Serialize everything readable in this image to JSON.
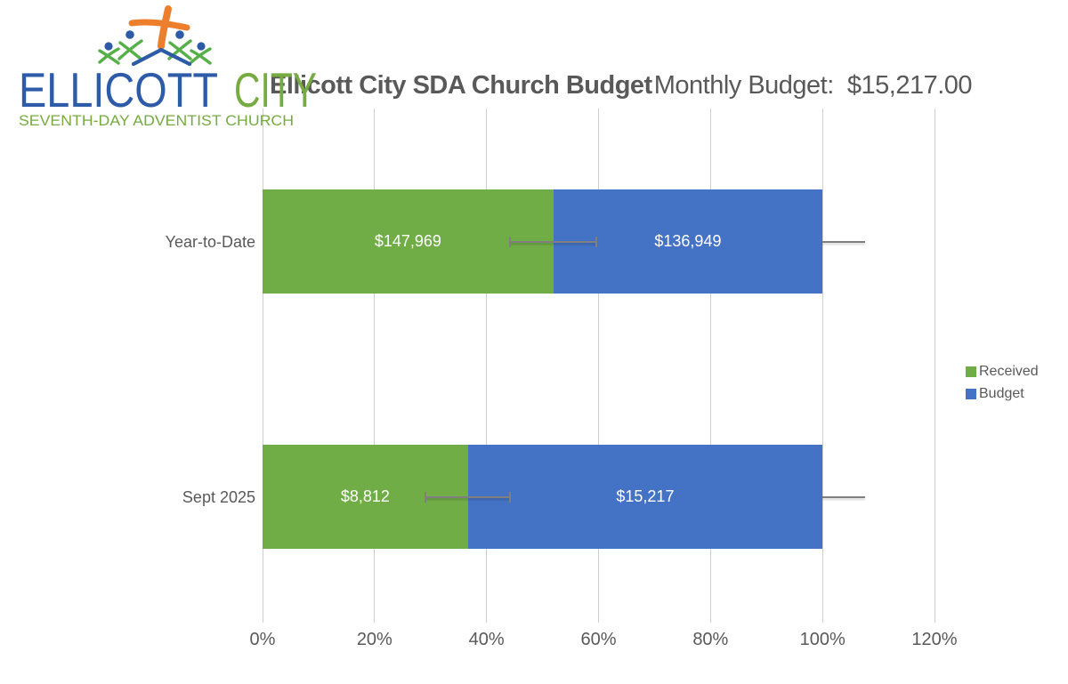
{
  "logo": {
    "name_line_part1": "ELLICOTT",
    "name_line_part2": "CITY",
    "tagline": "SEVENTH-DAY ADVENTIST CHURCH",
    "colors": {
      "blue": "#2E5BA8",
      "green": "#76AB41",
      "figure_green": "#55B048",
      "orange": "#ED7E2C"
    }
  },
  "header": {
    "chart_title": "Ellicott City SDA Church Budget",
    "monthly_budget_text": "Monthly Budget:  $15,217.00"
  },
  "chart_data": {
    "type": "bar",
    "variant": "100-percent-stacked-horizontal",
    "title": "Ellicott City SDA Church Budget",
    "categories": [
      "Year-to-Date",
      "Sept 2025"
    ],
    "series": [
      {
        "name": "Received",
        "color": "#70AD47",
        "values": [
          147969,
          8812
        ],
        "data_labels": [
          "$147,969",
          "$8,812"
        ]
      },
      {
        "name": "Budget",
        "color": "#4472C4",
        "values": [
          136949,
          15217
        ],
        "data_labels": [
          "$136,949",
          "$15,217"
        ]
      }
    ],
    "x_axis": {
      "tick_labels": [
        "0%",
        "20%",
        "40%",
        "60%",
        "80%",
        "100%",
        "120%"
      ],
      "min_pct": 0,
      "max_pct": 120,
      "gridlines": true
    },
    "legend": {
      "position": "right",
      "entries": [
        "Received",
        "Budget"
      ]
    },
    "error_bars": [
      {
        "category_index": 0,
        "from_pct": 44.2,
        "to_pct": 59.6,
        "caps": true
      },
      {
        "category_index": 0,
        "from_pct": 100.0,
        "to_pct": 107.6,
        "caps": false
      },
      {
        "category_index": 1,
        "from_pct": 29.1,
        "to_pct": 44.2,
        "caps": true
      },
      {
        "category_index": 1,
        "from_pct": 100.0,
        "to_pct": 107.6,
        "caps": false
      }
    ],
    "text_colors": {
      "labels": "#595959",
      "data_labels": "#FFFFFF"
    },
    "gridline_color": "#CFCDCD"
  }
}
